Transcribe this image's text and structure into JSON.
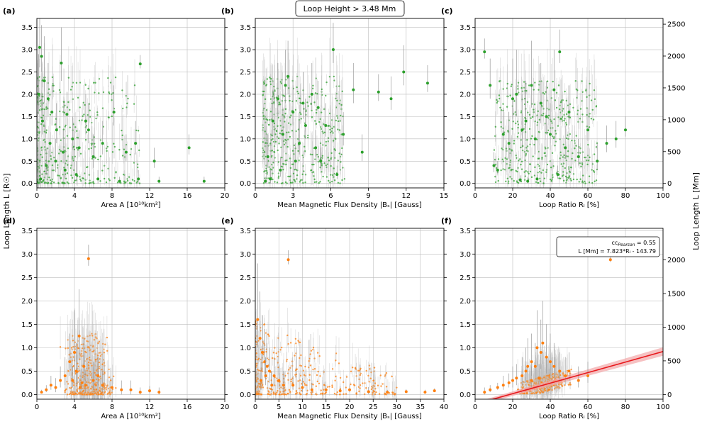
{
  "figure": {
    "header": "Loop Height  >  3.48 Mm",
    "ylabel_left": "Loop Length L [R☉]",
    "ylabel_right": "Loop Length L [Mm]"
  },
  "colors": {
    "green": "#2ca02c",
    "orange": "#ff7f0e",
    "fit": "#e8191d",
    "band": "#f2a6a8",
    "errorbar": "#bfbfbf",
    "grid": "#bdbdbd"
  },
  "chart_data": [
    {
      "id": "a",
      "panel_label": "(a)",
      "type": "scatter",
      "xlabel": "Area A [10¹⁰km²]",
      "xlim": [
        0,
        20
      ],
      "xticks": [
        0,
        4,
        8,
        12,
        16,
        20
      ],
      "ylim": [
        -0.1,
        3.7
      ],
      "yticks": [
        0.0,
        0.5,
        1.0,
        1.5,
        2.0,
        2.5,
        3.0,
        3.5
      ],
      "series": [
        {
          "name": "loops (height > 3.48 Mm)",
          "color": "green",
          "x": [
            0.3,
            0.5,
            0.8,
            1.2,
            1.6,
            2.1,
            2.6,
            3.2,
            3.8,
            4.5,
            5.2,
            6.0,
            7.0,
            8.2,
            9.5,
            10.5,
            11.0,
            13.0,
            16.2,
            17.8,
            0.4,
            1.0,
            2.0,
            3.0,
            4.2,
            6.5,
            8.8,
            10.8,
            12.5,
            0.6,
            1.4,
            2.8,
            5.5,
            0.2
          ],
          "y": [
            3.05,
            2.85,
            2.3,
            1.9,
            1.6,
            1.2,
            2.7,
            1.55,
            1.0,
            0.8,
            1.4,
            0.6,
            0.9,
            1.6,
            0.7,
            0.9,
            2.68,
            0.05,
            0.8,
            0.05,
            0.1,
            0.4,
            0.5,
            0.3,
            0.2,
            0.1,
            0.05,
            0.1,
            0.5,
            1.4,
            0.9,
            0.7,
            1.2,
            2.0
          ],
          "yerr": [
            0.9,
            0.7,
            1.0,
            0.8,
            0.6,
            0.6,
            0.8,
            0.5,
            0.5,
            0.4,
            0.6,
            0.5,
            0.5,
            0.6,
            0.4,
            0.5,
            0.2,
            0.1,
            0.3,
            0.1,
            0.2,
            0.4,
            0.5,
            0.4,
            0.3,
            0.2,
            0.1,
            0.2,
            0.3,
            0.6,
            0.6,
            0.5,
            0.6,
            0.9
          ]
        }
      ]
    },
    {
      "id": "b",
      "panel_label": "(b)",
      "type": "scatter",
      "xlabel": "Mean Magnetic Flux Density |Bₛ| [Gauss]",
      "xlim": [
        0,
        15
      ],
      "xticks": [
        0,
        3,
        6,
        9,
        12,
        15
      ],
      "ylim": [
        -0.1,
        3.7
      ],
      "yticks": [
        0.0,
        0.5,
        1.0,
        1.5,
        2.0,
        2.5,
        3.0,
        3.5
      ],
      "series": [
        {
          "name": "loops (height > 3.48 Mm)",
          "color": "green",
          "x": [
            1.0,
            1.4,
            1.8,
            2.2,
            2.6,
            3.0,
            3.5,
            4.0,
            4.5,
            5.0,
            5.6,
            6.2,
            7.0,
            7.8,
            8.5,
            9.8,
            10.8,
            11.8,
            13.7,
            1.2,
            2.0,
            3.2,
            4.8,
            6.5,
            0.8,
            2.4,
            3.8,
            5.2
          ],
          "y": [
            0.6,
            1.4,
            1.9,
            1.1,
            2.4,
            1.6,
            0.9,
            1.3,
            2.0,
            1.7,
            1.3,
            3.0,
            1.1,
            2.1,
            0.7,
            2.05,
            1.9,
            2.5,
            2.25,
            0.1,
            0.3,
            0.5,
            0.8,
            0.2,
            0.05,
            2.2,
            1.8,
            0.5
          ],
          "yerr": [
            0.5,
            0.7,
            0.8,
            0.6,
            0.8,
            0.6,
            0.5,
            0.6,
            0.7,
            0.6,
            0.5,
            0.6,
            0.5,
            0.6,
            0.4,
            0.4,
            0.5,
            0.6,
            0.4,
            0.2,
            0.3,
            0.4,
            0.4,
            0.2,
            0.1,
            0.8,
            0.7,
            0.3
          ]
        }
      ]
    },
    {
      "id": "c",
      "panel_label": "(c)",
      "type": "scatter",
      "xlabel": "Loop Ratio Rₗ [%]",
      "xlim": [
        0,
        100
      ],
      "xticks": [
        0,
        20,
        40,
        60,
        80,
        100
      ],
      "ylim": [
        -0.1,
        3.7
      ],
      "yticks": [
        0.0,
        0.5,
        1.0,
        1.5,
        2.0,
        2.5,
        3.0,
        3.5
      ],
      "y2lim": [
        -70,
        2590
      ],
      "y2ticks": [
        0,
        500,
        1000,
        1500,
        2000,
        2500
      ],
      "series": [
        {
          "name": "loops (height > 3.48 Mm)",
          "color": "green",
          "x": [
            5,
            8,
            10,
            12,
            15,
            18,
            20,
            22,
            25,
            27,
            30,
            32,
            35,
            38,
            40,
            42,
            45,
            48,
            50,
            55,
            60,
            65,
            70,
            75,
            80,
            28,
            33,
            24,
            44
          ],
          "y": [
            2.95,
            2.2,
            0.4,
            0.3,
            1.1,
            0.9,
            1.9,
            2.0,
            1.2,
            1.4,
            2.2,
            1.0,
            1.8,
            1.5,
            1.1,
            2.1,
            2.95,
            0.8,
            1.6,
            0.6,
            1.2,
            0.5,
            0.9,
            1.0,
            1.2,
            0.05,
            0.1,
            0.08,
            0.2
          ],
          "yerr": [
            0.3,
            0.6,
            0.3,
            0.2,
            0.6,
            0.7,
            0.9,
            1.0,
            0.8,
            0.9,
            1.0,
            0.7,
            0.9,
            0.8,
            0.7,
            0.9,
            0.5,
            0.5,
            0.6,
            0.4,
            0.5,
            0.4,
            0.4,
            0.4,
            0.3,
            0.1,
            0.1,
            0.1,
            0.2
          ]
        }
      ]
    },
    {
      "id": "d",
      "panel_label": "(d)",
      "type": "scatter",
      "xlabel": "Area A [10¹⁰km²]",
      "xlim": [
        0,
        20
      ],
      "xticks": [
        0,
        4,
        8,
        12,
        16,
        20
      ],
      "ylim": [
        -0.1,
        3.55
      ],
      "yticks": [
        0.0,
        0.5,
        1.0,
        1.5,
        2.0,
        2.5,
        3.0,
        3.5
      ],
      "series": [
        {
          "name": "loops (height ≤ 3.48 Mm)",
          "color": "orange",
          "x": [
            0.5,
            1.0,
            1.5,
            2.0,
            2.5,
            3.0,
            3.5,
            4.0,
            4.2,
            4.5,
            5.0,
            5.5,
            6.0,
            6.5,
            7.0,
            8.0,
            9.0,
            10.0,
            11.0,
            12.0,
            13.0,
            4.8,
            3.8,
            5.2,
            4.6
          ],
          "y": [
            0.05,
            0.1,
            0.2,
            0.15,
            0.3,
            0.4,
            0.7,
            0.9,
            0.5,
            1.25,
            0.6,
            2.9,
            0.3,
            0.4,
            0.2,
            0.15,
            0.1,
            0.1,
            0.05,
            0.08,
            0.05,
            0.25,
            0.3,
            0.2,
            0.15
          ],
          "yerr": [
            0.05,
            0.1,
            0.2,
            0.2,
            0.3,
            0.4,
            0.6,
            0.9,
            0.6,
            1.0,
            0.6,
            0.3,
            0.4,
            0.4,
            0.3,
            0.2,
            0.2,
            0.2,
            0.1,
            0.1,
            0.1,
            0.3,
            0.3,
            0.3,
            0.2
          ]
        }
      ]
    },
    {
      "id": "e",
      "panel_label": "(e)",
      "type": "scatter",
      "xlabel": "Mean Magnetic Flux Density |Bₛ| [Gauss]",
      "xlim": [
        0,
        40
      ],
      "xticks": [
        0,
        5,
        10,
        15,
        20,
        25,
        30,
        35,
        40
      ],
      "ylim": [
        -0.1,
        3.55
      ],
      "yticks": [
        0.0,
        0.5,
        1.0,
        1.5,
        2.0,
        2.5,
        3.0,
        3.5
      ],
      "series": [
        {
          "name": "loops (height ≤ 3.48 Mm)",
          "color": "orange",
          "x": [
            0.5,
            1.0,
            1.5,
            2.0,
            2.5,
            3.0,
            4.0,
            5.0,
            6.0,
            7.0,
            8.0,
            10.0,
            12.0,
            15.0,
            18.0,
            20.0,
            24.0,
            28.0,
            32.0,
            36.0,
            38.0,
            1.2,
            2.2,
            3.5
          ],
          "y": [
            1.6,
            1.2,
            0.9,
            0.7,
            0.6,
            0.5,
            0.4,
            0.3,
            0.2,
            2.88,
            0.2,
            0.15,
            0.1,
            0.1,
            0.08,
            0.1,
            0.06,
            0.05,
            0.06,
            0.05,
            0.08,
            0.3,
            0.4,
            0.2
          ],
          "yerr": [
            1.2,
            1.0,
            0.8,
            0.7,
            0.5,
            0.5,
            0.4,
            0.3,
            0.3,
            0.2,
            0.2,
            0.2,
            0.15,
            0.1,
            0.1,
            0.1,
            0.1,
            0.05,
            0.05,
            0.05,
            0.05,
            0.4,
            0.4,
            0.3
          ]
        }
      ]
    },
    {
      "id": "f",
      "panel_label": "(f)",
      "type": "scatter",
      "xlabel": "Loop Ratio Rₗ [%]",
      "xlim": [
        0,
        100
      ],
      "xticks": [
        0,
        20,
        40,
        60,
        80,
        100
      ],
      "ylim": [
        -0.1,
        3.55
      ],
      "yticks": [
        0.0,
        0.5,
        1.0,
        1.5,
        2.0,
        2.5,
        3.0,
        3.5
      ],
      "y2lim": [
        -70,
        2470
      ],
      "y2ticks": [
        0,
        500,
        1000,
        1500,
        2000
      ],
      "series": [
        {
          "name": "loops (height ≤ 3.48 Mm)",
          "color": "orange",
          "x": [
            5,
            8,
            12,
            15,
            18,
            20,
            22,
            25,
            27,
            28,
            30,
            32,
            33,
            35,
            36,
            38,
            40,
            42,
            45,
            48,
            50,
            55,
            60,
            72,
            30,
            34
          ],
          "y": [
            0.05,
            0.1,
            0.15,
            0.2,
            0.25,
            0.3,
            0.35,
            0.4,
            0.5,
            0.6,
            0.7,
            0.6,
            1.0,
            0.9,
            1.1,
            0.8,
            0.7,
            0.6,
            0.5,
            0.4,
            0.5,
            0.3,
            0.4,
            2.88,
            0.3,
            0.35
          ],
          "yerr": [
            0.1,
            0.1,
            0.1,
            0.2,
            0.2,
            0.3,
            0.3,
            0.4,
            0.5,
            0.6,
            0.6,
            0.5,
            0.8,
            0.7,
            0.9,
            0.7,
            0.6,
            0.5,
            0.4,
            0.4,
            0.4,
            0.3,
            0.3,
            0.1,
            0.3,
            0.3
          ]
        }
      ],
      "fit": {
        "type": "linear",
        "unit_axis": "y2",
        "slope": 7.823,
        "intercept": -143.79,
        "x_range": [
          4,
          100
        ],
        "legend_line1": "cc",
        "legend_sub": "Pearson",
        "legend_value": " = 0.55",
        "legend_line2": "L [Mm] = 7.823*Rₗ - 143.79"
      }
    }
  ]
}
